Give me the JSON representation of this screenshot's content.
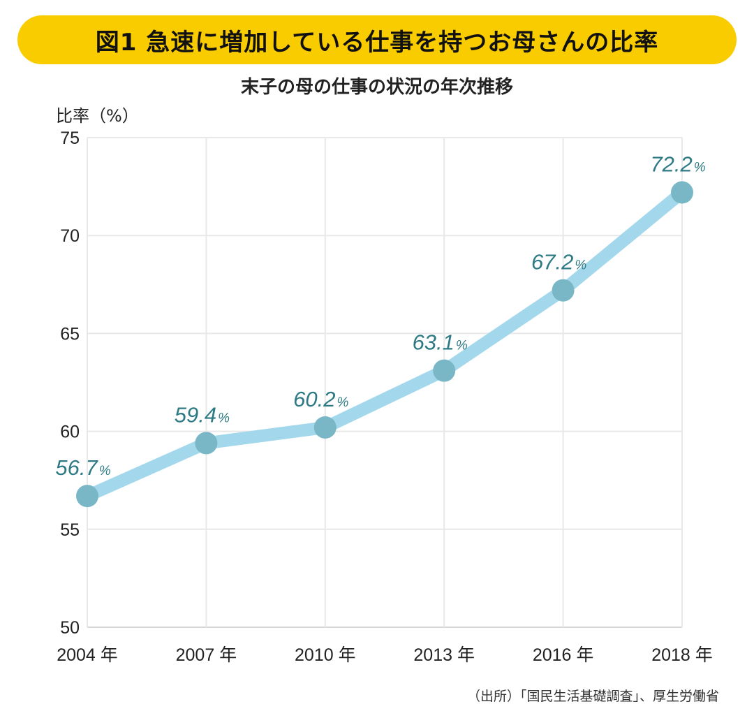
{
  "title": "図1  急速に増加している仕事を持つお母さんの比率",
  "subtitle": "末子の母の仕事の状況の年次推移",
  "source": "（出所）「国民生活基礎調査」、厚生労働省",
  "colors": {
    "banner": "#F9CC00",
    "line": "#A3D8EC",
    "marker": "#79B7C7",
    "label": "#2E7A84"
  },
  "chart_data": {
    "type": "line",
    "title": "末子の母の仕事の状況の年次推移",
    "ylabel": "比率（%）",
    "xlabel": "",
    "categories": [
      "2004 年",
      "2007 年",
      "2010 年",
      "2013 年",
      "2016 年",
      "2018 年"
    ],
    "values": [
      56.7,
      59.4,
      60.2,
      63.1,
      67.2,
      72.2
    ],
    "data_labels": [
      "56.7",
      "59.4",
      "60.2",
      "63.1",
      "67.2",
      "72.2"
    ],
    "data_label_unit": "%",
    "ylim": [
      50,
      75
    ],
    "yticks": [
      "50",
      "55",
      "60",
      "65",
      "70",
      "75"
    ],
    "grid": true
  }
}
